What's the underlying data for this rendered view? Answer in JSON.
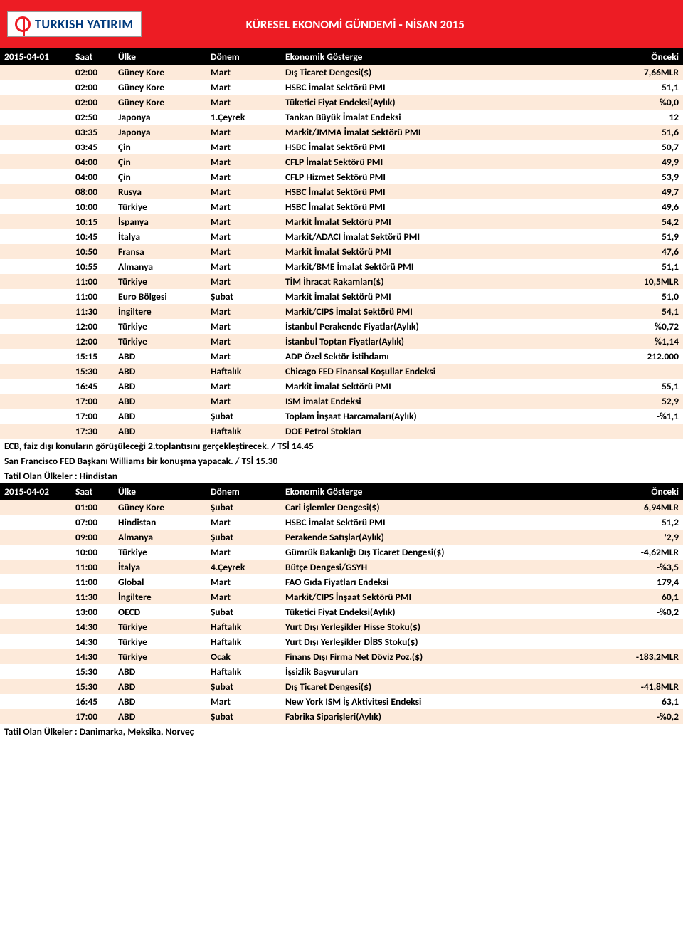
{
  "header": {
    "logo_text": "TURKISH YATIRIM",
    "title": "KÜRESEL EKONOMİ GÜNDEMİ - NİSAN 2015"
  },
  "colors": {
    "header_bg": "#ed1c24",
    "stripe_bg": "#fdeada",
    "section_bg": "#000000"
  },
  "section1": {
    "date": "2015-04-01",
    "cols": {
      "saat": "Saat",
      "ulke": "Ülke",
      "donem": "Dönem",
      "gost": "Ekonomik Gösterge",
      "onc": "Önceki"
    },
    "rows": [
      {
        "saat": "02:00",
        "ulke": "Güney Kore",
        "donem": "Mart",
        "gost": "Dış Ticaret Dengesi($)",
        "onc": "7,66MLR"
      },
      {
        "saat": "02:00",
        "ulke": "Güney Kore",
        "donem": "Mart",
        "gost": "HSBC İmalat Sektörü PMI",
        "onc": "51,1"
      },
      {
        "saat": "02:00",
        "ulke": "Güney Kore",
        "donem": "Mart",
        "gost": "Tüketici Fiyat Endeksi(Aylık)",
        "onc": "%0,0"
      },
      {
        "saat": "02:50",
        "ulke": "Japonya",
        "donem": "1.Çeyrek",
        "gost": "Tankan Büyük İmalat Endeksi",
        "onc": "12"
      },
      {
        "saat": "03:35",
        "ulke": "Japonya",
        "donem": "Mart",
        "gost": "Markit/JMMA İmalat Sektörü PMI",
        "onc": "51,6"
      },
      {
        "saat": "03:45",
        "ulke": "Çin",
        "donem": "Mart",
        "gost": "HSBC İmalat Sektörü PMI",
        "onc": "50,7"
      },
      {
        "saat": "04:00",
        "ulke": "Çin",
        "donem": "Mart",
        "gost": "CFLP İmalat Sektörü PMI",
        "onc": "49,9"
      },
      {
        "saat": "04:00",
        "ulke": "Çin",
        "donem": "Mart",
        "gost": "CFLP Hizmet Sektörü PMI",
        "onc": "53,9"
      },
      {
        "saat": "08:00",
        "ulke": "Rusya",
        "donem": "Mart",
        "gost": "HSBC İmalat Sektörü PMI",
        "onc": "49,7"
      },
      {
        "saat": "10:00",
        "ulke": "Türkiye",
        "donem": "Mart",
        "gost": "HSBC İmalat Sektörü PMI",
        "onc": "49,6"
      },
      {
        "saat": "10:15",
        "ulke": "İspanya",
        "donem": "Mart",
        "gost": "Markit İmalat Sektörü PMI",
        "onc": "54,2"
      },
      {
        "saat": "10:45",
        "ulke": "İtalya",
        "donem": "Mart",
        "gost": "Markit/ADACI İmalat Sektörü PMI",
        "onc": "51,9"
      },
      {
        "saat": "10:50",
        "ulke": "Fransa",
        "donem": "Mart",
        "gost": "Markit İmalat Sektörü PMI",
        "onc": "47,6"
      },
      {
        "saat": "10:55",
        "ulke": "Almanya",
        "donem": "Mart",
        "gost": "Markit/BME İmalat Sektörü PMI",
        "onc": "51,1"
      },
      {
        "saat": "11:00",
        "ulke": "Türkiye",
        "donem": "Mart",
        "gost": "TİM İhracat Rakamları($)",
        "onc": "10,5MLR"
      },
      {
        "saat": "11:00",
        "ulke": "Euro Bölgesi",
        "donem": "Şubat",
        "gost": "Markit İmalat Sektörü PMI",
        "onc": "51,0"
      },
      {
        "saat": "11:30",
        "ulke": "İngiltere",
        "donem": "Mart",
        "gost": "Markit/CIPS İmalat Sektörü PMI",
        "onc": "54,1"
      },
      {
        "saat": "12:00",
        "ulke": "Türkiye",
        "donem": "Mart",
        "gost": "İstanbul Perakende Fiyatlar(Aylık)",
        "onc": "%0,72"
      },
      {
        "saat": "12:00",
        "ulke": "Türkiye",
        "donem": "Mart",
        "gost": "İstanbul Toptan Fiyatlar(Aylık)",
        "onc": "%1,14"
      },
      {
        "saat": "15:15",
        "ulke": "ABD",
        "donem": "Mart",
        "gost": "ADP Özel Sektör İstihdamı",
        "onc": "212.000"
      },
      {
        "saat": "15:30",
        "ulke": "ABD",
        "donem": "Haftalık",
        "gost": "Chicago FED Finansal Koşullar Endeksi",
        "onc": ""
      },
      {
        "saat": "16:45",
        "ulke": "ABD",
        "donem": "Mart",
        "gost": "Markit İmalat Sektörü PMI",
        "onc": "55,1"
      },
      {
        "saat": "17:00",
        "ulke": "ABD",
        "donem": "Mart",
        "gost": "ISM İmalat Endeksi",
        "onc": "52,9"
      },
      {
        "saat": "17:00",
        "ulke": "ABD",
        "donem": "Şubat",
        "gost": "Toplam İnşaat Harcamaları(Aylık)",
        "onc": "-%1,1"
      },
      {
        "saat": "17:30",
        "ulke": "ABD",
        "donem": "Haftalık",
        "gost": "DOE Petrol Stokları",
        "onc": ""
      }
    ],
    "notes": [
      "ECB, faiz dışı konuların görüşüleceği 2.toplantısını gerçekleştirecek. / TSİ 14.45",
      "San Francisco FED Başkanı Williams bir konuşma yapacak. / TSİ 15.30",
      "Tatil Olan Ülkeler : Hindistan"
    ]
  },
  "section2": {
    "date": "2015-04-02",
    "cols": {
      "saat": "Saat",
      "ulke": "Ülke",
      "donem": "Dönem",
      "gost": "Ekonomik Gösterge",
      "onc": "Önceki"
    },
    "rows": [
      {
        "saat": "01:00",
        "ulke": "Güney Kore",
        "donem": "Şubat",
        "gost": "Cari İşlemler Dengesi($)",
        "onc": "6,94MLR"
      },
      {
        "saat": "07:00",
        "ulke": "Hindistan",
        "donem": "Mart",
        "gost": "HSBC İmalat Sektörü PMI",
        "onc": "51,2"
      },
      {
        "saat": "09:00",
        "ulke": "Almanya",
        "donem": "Şubat",
        "gost": "Perakende Satışlar(Aylık)",
        "onc": "'2,9"
      },
      {
        "saat": "10:00",
        "ulke": "Türkiye",
        "donem": "Mart",
        "gost": "Gümrük Bakanlığı Dış Ticaret Dengesi($)",
        "onc": "-4,62MLR"
      },
      {
        "saat": "11:00",
        "ulke": "İtalya",
        "donem": "4.Çeyrek",
        "gost": "Bütçe Dengesi/GSYH",
        "onc": "-%3,5"
      },
      {
        "saat": "11:00",
        "ulke": "Global",
        "donem": "Mart",
        "gost": "FAO Gıda Fiyatları Endeksi",
        "onc": "179,4"
      },
      {
        "saat": "11:30",
        "ulke": "İngiltere",
        "donem": "Mart",
        "gost": "Markit/CIPS İnşaat Sektörü PMI",
        "onc": "60,1"
      },
      {
        "saat": "13:00",
        "ulke": "OECD",
        "donem": "Şubat",
        "gost": "Tüketici Fiyat Endeksi(Aylık)",
        "onc": "-%0,2"
      },
      {
        "saat": "14:30",
        "ulke": "Türkiye",
        "donem": "Haftalık",
        "gost": "Yurt Dışı Yerleşikler Hisse Stoku($)",
        "onc": ""
      },
      {
        "saat": "14:30",
        "ulke": "Türkiye",
        "donem": "Haftalık",
        "gost": "Yurt Dışı Yerleşikler DİBS Stoku($)",
        "onc": ""
      },
      {
        "saat": "14:30",
        "ulke": "Türkiye",
        "donem": "Ocak",
        "gost": "Finans Dışı Firma Net Döviz Poz.($)",
        "onc": "-183,2MLR"
      },
      {
        "saat": "15:30",
        "ulke": "ABD",
        "donem": "Haftalık",
        "gost": "İşsizlik Başvuruları",
        "onc": ""
      },
      {
        "saat": "15:30",
        "ulke": "ABD",
        "donem": "Şubat",
        "gost": "Dış Ticaret Dengesi($)",
        "onc": "-41,8MLR"
      },
      {
        "saat": "16:45",
        "ulke": "ABD",
        "donem": "Mart",
        "gost": "New York ISM İş Aktivitesi Endeksi",
        "onc": "63,1"
      },
      {
        "saat": "17:00",
        "ulke": "ABD",
        "donem": "Şubat",
        "gost": "Fabrika Siparişleri(Aylık)",
        "onc": "-%0,2"
      }
    ],
    "notes": [
      "Tatil Olan Ülkeler : Danimarka, Meksika, Norveç"
    ]
  }
}
